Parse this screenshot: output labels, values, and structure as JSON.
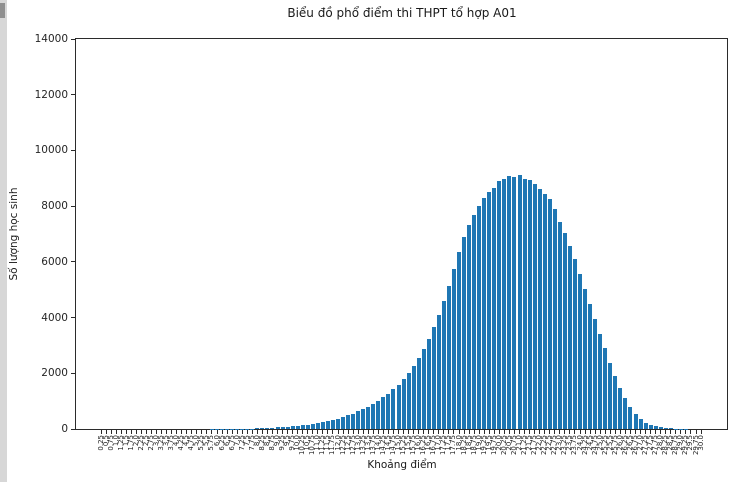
{
  "chart_data": {
    "type": "bar",
    "title": "Biểu đồ phổ điểm thi THPT tổ hợp A01",
    "xlabel": "Khoảng điểm",
    "ylabel": "Số lượng học sinh",
    "ylim": [
      0,
      14000
    ],
    "ytick_labels": [
      "0",
      "2000",
      "4000",
      "6000",
      "8000",
      "10000",
      "12000",
      "14000"
    ],
    "ytick_values": [
      0,
      2000,
      4000,
      6000,
      8000,
      10000,
      12000,
      14000
    ],
    "grid": false,
    "legend": "none",
    "bar_color": "#1f77b4",
    "axis_color": "#2b2b2b",
    "text_color": "#262626",
    "categories": [
      "0.25",
      "0.5",
      "0.75",
      "1.0",
      "1.25",
      "1.5",
      "1.75",
      "2.0",
      "2.25",
      "2.5",
      "2.75",
      "3.0",
      "3.25",
      "3.5",
      "3.75",
      "4.0",
      "4.25",
      "4.5",
      "4.75",
      "5.0",
      "5.25",
      "5.5",
      "5.75",
      "6.0",
      "6.25",
      "6.5",
      "6.75",
      "7.0",
      "7.25",
      "7.5",
      "7.75",
      "8.0",
      "8.25",
      "8.5",
      "8.75",
      "9.0",
      "9.25",
      "9.5",
      "9.75",
      "10.0",
      "10.25",
      "10.5",
      "10.75",
      "11.0",
      "11.25",
      "11.5",
      "11.75",
      "12.0",
      "12.25",
      "12.5",
      "12.75",
      "13.0",
      "13.25",
      "13.5",
      "13.75",
      "14.0",
      "14.25",
      "14.5",
      "14.75",
      "15.0",
      "15.25",
      "15.5",
      "15.75",
      "16.0",
      "16.25",
      "16.5",
      "16.75",
      "17.0",
      "17.25",
      "17.5",
      "17.75",
      "18.0",
      "18.25",
      "18.5",
      "18.75",
      "19.0",
      "19.25",
      "19.5",
      "19.75",
      "20.0",
      "20.25",
      "20.5",
      "20.75",
      "21.0",
      "21.25",
      "21.5",
      "21.75",
      "22.0",
      "22.25",
      "22.5",
      "22.75",
      "23.0",
      "23.25",
      "23.5",
      "23.75",
      "24.0",
      "24.25",
      "24.5",
      "24.75",
      "25.0",
      "25.25",
      "25.5",
      "25.75",
      "26.0",
      "26.25",
      "26.5",
      "26.75",
      "27.0",
      "27.25",
      "27.5",
      "27.75",
      "28.0",
      "28.25",
      "28.5",
      "28.75",
      "29.0",
      "29.25",
      "29.5",
      "29.75",
      "30.0"
    ],
    "values": [
      0,
      0,
      0,
      0,
      0,
      0,
      0,
      0,
      0,
      0,
      0,
      0,
      0,
      0,
      0,
      0,
      0,
      0,
      0,
      1,
      1,
      1,
      2,
      2,
      3,
      3,
      4,
      6,
      8,
      11,
      16,
      22,
      28,
      36,
      45,
      56,
      68,
      82,
      97,
      113,
      131,
      152,
      176,
      205,
      239,
      278,
      322,
      371,
      426,
      488,
      556,
      632,
      715,
      806,
      905,
      1014,
      1136,
      1272,
      1425,
      1598,
      1794,
      2016,
      2268,
      2554,
      2878,
      3243,
      3652,
      4107,
      4608,
      5152,
      5734,
      6345,
      6880,
      7320,
      7690,
      8010,
      8290,
      8520,
      8640,
      8890,
      8960,
      9100,
      9060,
      9105,
      8990,
      8930,
      8800,
      8620,
      8450,
      8270,
      7890,
      7450,
      7040,
      6570,
      6090,
      5560,
      5030,
      4490,
      3960,
      3430,
      2900,
      2360,
      1890,
      1480,
      1120,
      800,
      540,
      345,
      215,
      140,
      92,
      58,
      35,
      20,
      11,
      5,
      2,
      1,
      0,
      0
    ]
  }
}
